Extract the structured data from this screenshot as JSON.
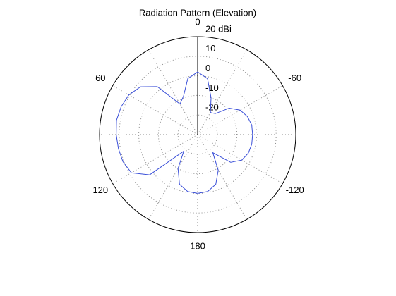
{
  "chart_data": {
    "type": "polar",
    "title": "Radiation Pattern (Elevation)",
    "theta": [
      -180,
      -170,
      -160,
      -150,
      -140,
      -130,
      -120,
      -110,
      -100,
      -90,
      -80,
      -70,
      -60,
      -50,
      -40,
      -30,
      -20,
      -10,
      0,
      10,
      20,
      30,
      40,
      50,
      60,
      70,
      80,
      90,
      100,
      110,
      120,
      130,
      140,
      150,
      160,
      170,
      180
    ],
    "values": [
      0,
      -0.5,
      -3,
      -9,
      -18,
      -8,
      -4,
      -2.5,
      -2,
      -2,
      -2,
      -3,
      -5,
      -9,
      -16,
      -17,
      -10,
      -1,
      2,
      -1,
      -9,
      -12,
      2,
      8,
      10.5,
      11.5,
      12,
      11.5,
      11,
      10.5,
      9,
      2,
      -19,
      -10,
      -3,
      -0.5,
      0
    ],
    "color": "#3a4fd8",
    "rlim": [
      -30,
      20
    ],
    "rticks": [
      -20,
      -10,
      0,
      10,
      {
        "value": 20,
        "label": "20 dBi"
      }
    ],
    "thetaticks": [
      0,
      60,
      120,
      180,
      -120,
      -60
    ],
    "grid": true
  }
}
